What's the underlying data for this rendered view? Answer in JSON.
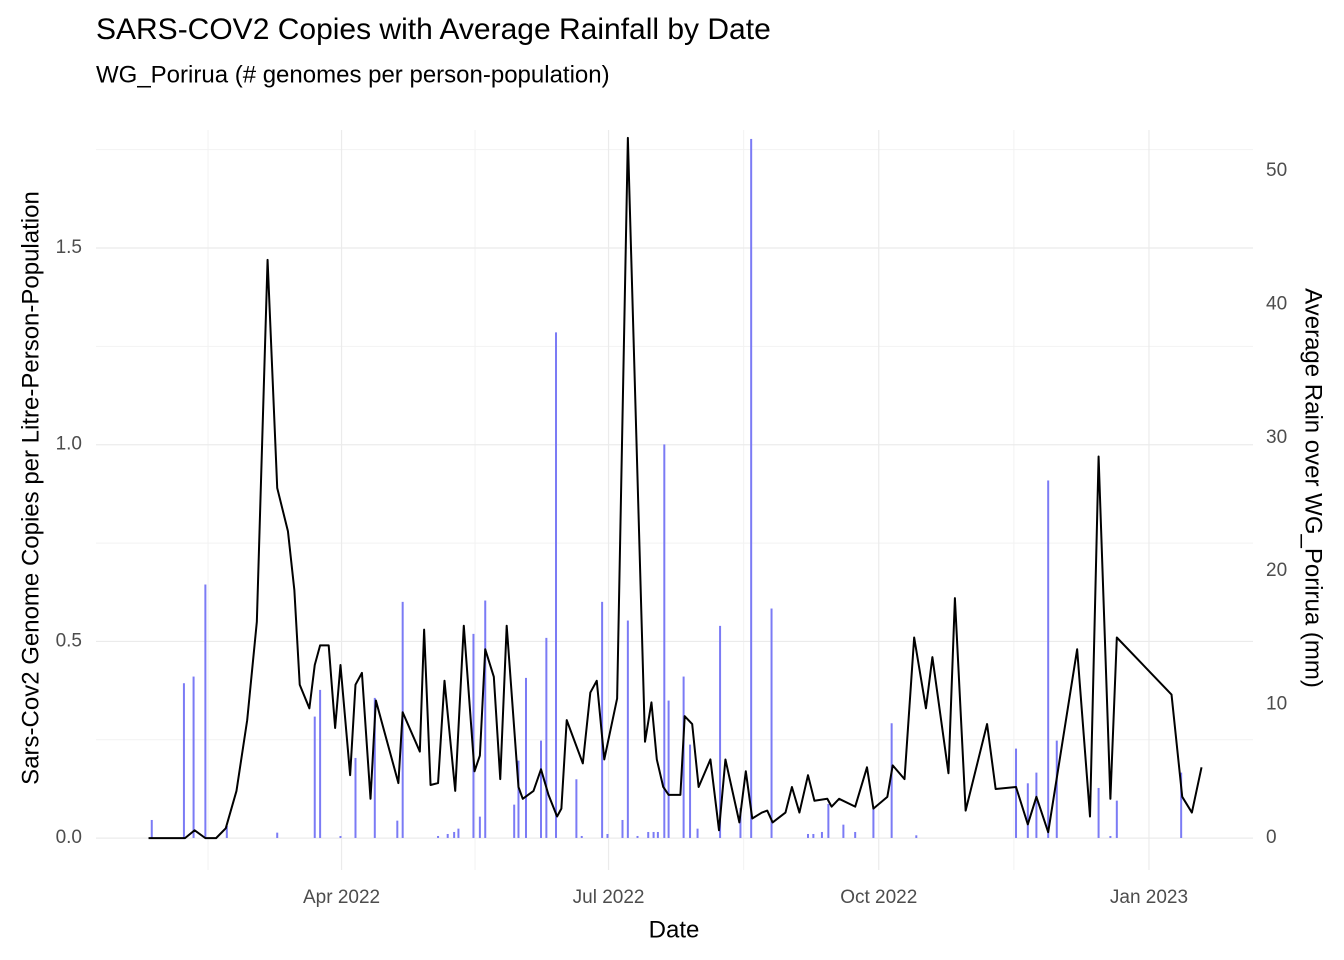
{
  "chart_data": {
    "type": "combo",
    "title": "SARS-COV2 Copies with Average Rainfall by Date",
    "subtitle": "WG_Porirua (# genomes per person-population)",
    "xlabel": "Date",
    "ylabel": "Sars-Cov2 Genome Copies per Litre-Person-Population",
    "y2label": "Average Rain over WG_Porirua (mm)",
    "grid": true,
    "minor_grid": true,
    "xlim": [
      2022.018,
      2023.097
    ],
    "xticks": [
      {
        "value": 2022.247,
        "label": "Apr 2022"
      },
      {
        "value": 2022.496,
        "label": "Jul 2022"
      },
      {
        "value": 2022.748,
        "label": "Oct 2022"
      },
      {
        "value": 2023.0,
        "label": "Jan 2023"
      }
    ],
    "ylim": [
      -0.081,
      1.8
    ],
    "yticks": [
      {
        "value": 0,
        "label": "0.0"
      },
      0.5,
      {
        "value": 1,
        "label": "1.0"
      },
      1.5
    ],
    "y2lim": [
      -2.4,
      53.07
    ],
    "y2ticks": [
      0,
      10,
      20,
      30,
      40,
      50
    ],
    "series": [
      {
        "type": "bar",
        "axis": "y2",
        "color": "#7b7bf5",
        "x": [
          2022.07,
          2022.1,
          2022.109,
          2022.12,
          2022.14,
          2022.187,
          2022.222,
          2022.227,
          2022.246,
          2022.26,
          2022.278,
          2022.299,
          2022.304,
          2022.337,
          2022.346,
          2022.352,
          2022.356,
          2022.37,
          2022.376,
          2022.381,
          2022.408,
          2022.412,
          2022.419,
          2022.433,
          2022.438,
          2022.447,
          2022.466,
          2022.471,
          2022.49,
          2022.495,
          2022.509,
          2022.514,
          2022.523,
          2022.533,
          2022.538,
          2022.542,
          2022.548,
          2022.552,
          2022.566,
          2022.572,
          2022.579,
          2022.6,
          2022.619,
          2022.629,
          2022.648,
          2022.682,
          2022.687,
          2022.695,
          2022.701,
          2022.715,
          2022.726,
          2022.743,
          2022.76,
          2022.783,
          2022.876,
          2022.887,
          2022.895,
          2022.906,
          2022.914,
          2022.953,
          2022.964,
          2022.97,
          2023.03
        ],
        "values": [
          1.35,
          11.6,
          12.1,
          19.0,
          0.9,
          0.4,
          9.1,
          11.1,
          0.15,
          6.0,
          10.5,
          1.3,
          17.7,
          0.15,
          0.3,
          0.45,
          0.7,
          15.3,
          1.6,
          17.8,
          2.5,
          5.8,
          12.0,
          7.3,
          15.0,
          37.9,
          4.4,
          0.15,
          17.7,
          0.3,
          1.35,
          16.3,
          0.15,
          0.45,
          0.45,
          0.45,
          29.5,
          10.3,
          12.1,
          7.0,
          0.7,
          15.9,
          2.25,
          52.4,
          17.2,
          0.3,
          0.3,
          0.45,
          2.55,
          1.0,
          0.45,
          2.25,
          8.6,
          0.2,
          6.7,
          4.1,
          4.9,
          26.8,
          7.3,
          3.75,
          0.15,
          2.8,
          4.9
        ]
      },
      {
        "type": "line",
        "color": "#000000",
        "x": [
          2022.067,
          2022.073,
          2022.101,
          2022.11,
          2022.12,
          2022.13,
          2022.139,
          2022.149,
          2022.159,
          2022.168,
          2022.178,
          2022.187,
          2022.197,
          2022.203,
          2022.208,
          2022.217,
          2022.222,
          2022.227,
          2022.235,
          2022.241,
          2022.246,
          2022.255,
          2022.26,
          2022.266,
          2022.274,
          2022.279,
          2022.3,
          2022.304,
          2022.32,
          2022.324,
          2022.33,
          2022.337,
          2022.343,
          2022.353,
          2022.361,
          2022.371,
          2022.376,
          2022.381,
          2022.389,
          2022.395,
          2022.401,
          2022.412,
          2022.416,
          2022.426,
          2022.433,
          2022.44,
          2022.448,
          2022.452,
          2022.457,
          2022.472,
          2022.479,
          2022.485,
          2022.492,
          2022.504,
          2022.514,
          2022.53,
          2022.536,
          2022.541,
          2022.547,
          2022.552,
          2022.563,
          2022.567,
          2022.574,
          2022.58,
          2022.591,
          2022.599,
          2022.605,
          2022.618,
          2022.624,
          2022.63,
          2022.639,
          2022.644,
          2022.649,
          2022.661,
          2022.667,
          2022.674,
          2022.682,
          2022.688,
          2022.7,
          2022.704,
          2022.711,
          2022.726,
          2022.737,
          2022.743,
          2022.756,
          2022.761,
          2022.772,
          2022.781,
          2022.792,
          2022.798,
          2022.813,
          2022.819,
          2022.829,
          2022.849,
          2022.857,
          2022.876,
          2022.887,
          2022.895,
          2022.906,
          2022.933,
          2022.945,
          2022.953,
          2022.964,
          2022.97,
          2023.021,
          2023.031,
          2023.04,
          2023.049
        ],
        "values": [
          0.0,
          0.0,
          0.0,
          0.02,
          0.0,
          0.0,
          0.025,
          0.12,
          0.3,
          0.55,
          1.47,
          0.89,
          0.78,
          0.63,
          0.39,
          0.33,
          0.44,
          0.49,
          0.49,
          0.28,
          0.44,
          0.16,
          0.39,
          0.42,
          0.1,
          0.35,
          0.14,
          0.32,
          0.22,
          0.53,
          0.135,
          0.14,
          0.4,
          0.12,
          0.54,
          0.17,
          0.21,
          0.48,
          0.41,
          0.15,
          0.54,
          0.13,
          0.1,
          0.12,
          0.175,
          0.11,
          0.055,
          0.075,
          0.3,
          0.19,
          0.37,
          0.4,
          0.2,
          0.355,
          1.78,
          0.245,
          0.345,
          0.2,
          0.13,
          0.11,
          0.11,
          0.31,
          0.29,
          0.13,
          0.2,
          0.02,
          0.2,
          0.04,
          0.17,
          0.05,
          0.065,
          0.07,
          0.04,
          0.065,
          0.13,
          0.065,
          0.16,
          0.095,
          0.1,
          0.08,
          0.1,
          0.08,
          0.18,
          0.075,
          0.105,
          0.185,
          0.15,
          0.51,
          0.33,
          0.46,
          0.165,
          0.61,
          0.07,
          0.29,
          0.125,
          0.13,
          0.035,
          0.105,
          0.015,
          0.48,
          0.055,
          0.97,
          0.1,
          0.51,
          0.365,
          0.105,
          0.065,
          0.18
        ]
      }
    ]
  }
}
